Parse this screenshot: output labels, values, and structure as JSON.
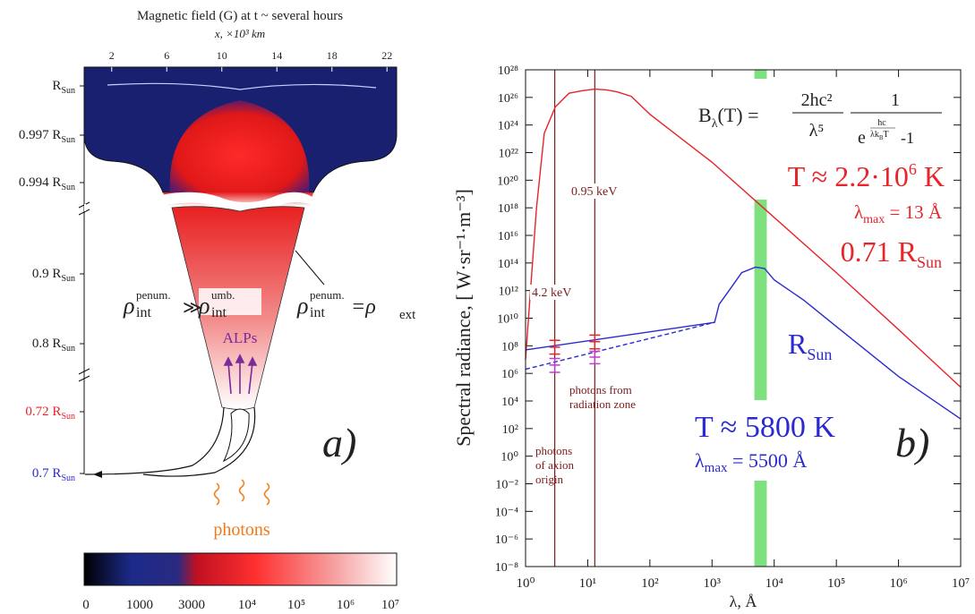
{
  "panel_a": {
    "title": "Magnetic field (G) at t ~ several hours",
    "x_axis": {
      "label": "x, ×10³ km",
      "lim": [
        0,
        22.7
      ],
      "ticks": [
        2,
        6,
        10,
        14,
        18,
        22
      ]
    },
    "radius_labels": [
      {
        "text": "R",
        "sub": "Sun",
        "color": "#222222"
      },
      {
        "text": "0.997 R",
        "sub": "Sun",
        "color": "#222222"
      },
      {
        "text": "0.994 R",
        "sub": "Sun",
        "color": "#222222"
      },
      {
        "text": "0.9 R",
        "sub": "Sun",
        "color": "#222222"
      },
      {
        "text": "0.8 R",
        "sub": "Sun",
        "color": "#222222"
      },
      {
        "text": "0.72 R",
        "sub": "Sun",
        "color": "#e8232a"
      },
      {
        "text": "0.7 R",
        "sub": "Sun",
        "color": "#2a2ad0"
      }
    ],
    "rho_left": {
      "symbol": "ρ",
      "sup": "penum.",
      "sub": "int"
    },
    "relation": "≫",
    "rho_mid": {
      "symbol": "ρ",
      "sup": "umb.",
      "sub": "int"
    },
    "rho_right": {
      "symbol": "ρ",
      "sup": "penum.",
      "sub": "int"
    },
    "rho_equals": {
      "symbol": "=ρ",
      "sub": "ext"
    },
    "alps": "ALPs",
    "photons": "photons",
    "panel_label": "a)",
    "colorbar_labels": [
      "0",
      "1000",
      "3000",
      "10⁴",
      "10⁵",
      "10⁶",
      "10⁷"
    ]
  },
  "chart_data": {
    "type": "line",
    "xlabel": "λ, Å",
    "ylabel": "Spectral radiance, [ W·sr⁻¹·m⁻³]",
    "xscale": "log",
    "yscale": "log",
    "xlim": [
      1,
      10000000
    ],
    "ylim": [
      1e-08,
      1e+28
    ],
    "xticks": [
      {
        "value": 1,
        "label": "10⁰"
      },
      {
        "value": 10,
        "label": "10¹"
      },
      {
        "value": 100,
        "label": "10²"
      },
      {
        "value": 1000,
        "label": "10³"
      },
      {
        "value": 10000,
        "label": "10⁴"
      },
      {
        "value": 100000,
        "label": "10⁵"
      },
      {
        "value": 1000000,
        "label": "10⁶"
      },
      {
        "value": 10000000,
        "label": "10⁷"
      }
    ],
    "yticks": [
      {
        "value": 1e-08,
        "label": "10⁻⁸"
      },
      {
        "value": 1e-06,
        "label": "10⁻⁶"
      },
      {
        "value": 0.0001,
        "label": "10⁻⁴"
      },
      {
        "value": 0.01,
        "label": "10⁻²"
      },
      {
        "value": 1,
        "label": "10⁰"
      },
      {
        "value": 100,
        "label": "10²"
      },
      {
        "value": 10000,
        "label": "10⁴"
      },
      {
        "value": 1000000,
        "label": "10⁶"
      },
      {
        "value": 100000000.0,
        "label": "10⁸"
      },
      {
        "value": 10000000000.0,
        "label": "10¹⁰"
      },
      {
        "value": 1000000000000.0,
        "label": "10¹²"
      },
      {
        "value": 100000000000000.0,
        "label": "10¹⁴"
      },
      {
        "value": 1e+16,
        "label": "10¹⁶"
      },
      {
        "value": 1e+18,
        "label": "10¹⁸"
      },
      {
        "value": 1e+20,
        "label": "10²⁰"
      },
      {
        "value": 1e+22,
        "label": "10²²"
      },
      {
        "value": 1e+24,
        "label": "10²⁴"
      },
      {
        "value": 1e+26,
        "label": "10²⁶"
      },
      {
        "value": 1e+28,
        "label": "10²⁸"
      }
    ],
    "series": [
      {
        "color": "#e8232a",
        "dash": false,
        "x": [
          1,
          1.2,
          1.5,
          2,
          3,
          5,
          8,
          13,
          20,
          30,
          50,
          100,
          1000,
          10000,
          100000,
          1000000,
          10000000
        ],
        "values": [
          10000000.0,
          1000000000000.0,
          1e+18,
          2.5e+23,
          2e+25,
          2e+26,
          3e+26,
          4e+26,
          3.5e+26,
          2.5e+26,
          1.2e+26,
          6e+24,
          2e+21,
          2e+17,
          20000000000000.0,
          1500000000.0,
          100000
        ]
      },
      {
        "color": "#2a2ad0",
        "dash": false,
        "x": [
          1,
          1100,
          1300,
          2000,
          3000,
          5000,
          7000,
          10000,
          30000,
          100000,
          1000000,
          10000000
        ],
        "values": [
          50000000.0,
          5000000000.0,
          100000000000.0,
          1500000000000.0,
          20000000000000.0,
          50000000000000.0,
          40000000000000.0,
          6000000000000.0,
          200000000000.0,
          2500000000.0,
          600000,
          500
        ]
      },
      {
        "color": "#2a2ad0",
        "dash": true,
        "x": [
          1,
          1100
        ],
        "values": [
          2000000,
          5000000000.0
        ]
      }
    ],
    "band": [
      4800,
      7600
    ],
    "band_color": "#7ee07e",
    "vline_color": "#7b1c1c",
    "vlines": [
      {
        "x": 2.95,
        "label": "4.2 keV"
      },
      {
        "x": 13,
        "label": "0.95 keV"
      }
    ],
    "error_bars": [
      {
        "color": "#e8232a",
        "x": [
          2.95,
          13
        ],
        "values": [
          80000000.0,
          200000000.0
        ],
        "low": [
          25000000.0,
          60000000.0
        ],
        "high": [
          250000000.0,
          600000000.0
        ]
      },
      {
        "color": "#c03cd0",
        "x": [
          2.95,
          13
        ],
        "values": [
          4000000,
          15000000.0
        ],
        "low": [
          1200000,
          5000000
        ],
        "high": [
          12000000.0,
          40000000.0
        ]
      }
    ],
    "formula": {
      "lhs": "B",
      "lhs_sub": "λ",
      "lhs_arg": "(T) =",
      "num1": "2hc²",
      "den1": "λ⁵",
      "num2": "1",
      "den2_base": "e",
      "exp_num": "hc",
      "exp_den": "λk",
      "exp_den_sub": "B",
      "exp_den_tail": "T",
      "den2_tail": "-1"
    },
    "red_T": {
      "text": "T ≈ 2.2·10",
      "sup": "6",
      "tail": " K"
    },
    "red_lmax": {
      "text": "λ",
      "sub": "max",
      "tail": " = 13 Å"
    },
    "red_r": {
      "text": "0.71 R",
      "sub": "Sun"
    },
    "blue_r": {
      "text": "R",
      "sub": "Sun"
    },
    "blue_T": "T ≈ 5800 K",
    "blue_lmax": {
      "text": "λ",
      "sub": "max",
      "tail": " = 5500 Å"
    },
    "zone_label": [
      "photons from",
      "radiation zone"
    ],
    "axion_label": [
      "photons",
      "of axion",
      "origin"
    ],
    "panel_label": "b)"
  }
}
